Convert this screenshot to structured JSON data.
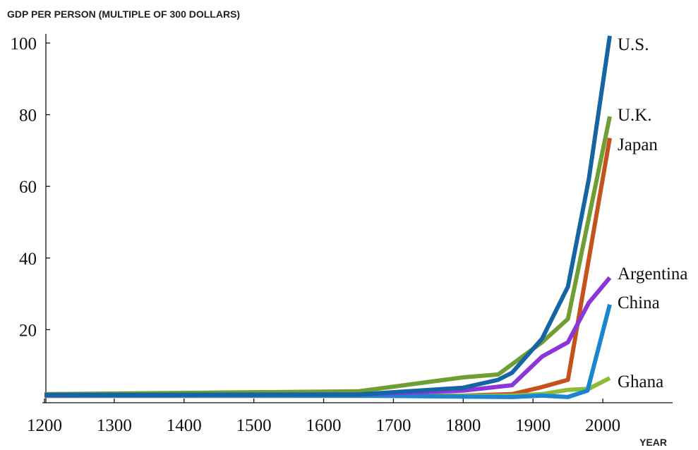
{
  "chart_data": {
    "type": "line",
    "title": "",
    "ylabel": "GDP PER PERSON (MULTIPLE OF 300 DOLLARS)",
    "xlabel": "YEAR",
    "xlim": [
      1200,
      2100
    ],
    "ylim": [
      -1.5,
      103
    ],
    "xticks": [
      1200,
      1300,
      1400,
      1500,
      1600,
      1700,
      1800,
      1900,
      2000
    ],
    "yticks": [
      20,
      40,
      60,
      80,
      100
    ],
    "grid": false,
    "legend": "direct labels at line ends",
    "series": [
      {
        "name": "U.K.",
        "color": "#6f9e34",
        "x": [
          1200,
          1650,
          1800,
          1850,
          1913,
          1950,
          2010
        ],
        "y": [
          2,
          2.8,
          6.7,
          7.5,
          16.5,
          23,
          79.5
        ]
      },
      {
        "name": "Japan",
        "color": "#c5521c",
        "x": [
          1200,
          1650,
          1800,
          1870,
          1913,
          1950,
          2010
        ],
        "y": [
          1.5,
          1.6,
          1.6,
          2,
          4,
          6,
          73.5
        ]
      },
      {
        "name": "Ghana",
        "color": "#8dbb3c",
        "x": [
          1200,
          1650,
          1870,
          1913,
          1950,
          1980,
          2010
        ],
        "y": [
          1.5,
          1.5,
          1.6,
          2,
          3.2,
          3.5,
          6.5
        ]
      },
      {
        "name": "China",
        "color": "#1a86d1",
        "x": [
          1200,
          1650,
          1870,
          1913,
          1950,
          1978,
          2010
        ],
        "y": [
          1.6,
          1.6,
          1.2,
          1.6,
          1.2,
          3,
          27
        ]
      },
      {
        "name": "Argentina",
        "color": "#8a36d8",
        "x": [
          1200,
          1650,
          1800,
          1870,
          1913,
          1950,
          1980,
          2010
        ],
        "y": [
          1.7,
          1.9,
          3,
          4.5,
          12.5,
          16.5,
          27.5,
          34.5
        ]
      },
      {
        "name": "U.S.",
        "color": "#1564a3",
        "x": [
          1200,
          1650,
          1800,
          1850,
          1870,
          1913,
          1950,
          1980,
          2010
        ],
        "y": [
          1.8,
          1.9,
          3.8,
          6,
          8,
          17.5,
          32,
          62,
          102
        ]
      }
    ]
  }
}
